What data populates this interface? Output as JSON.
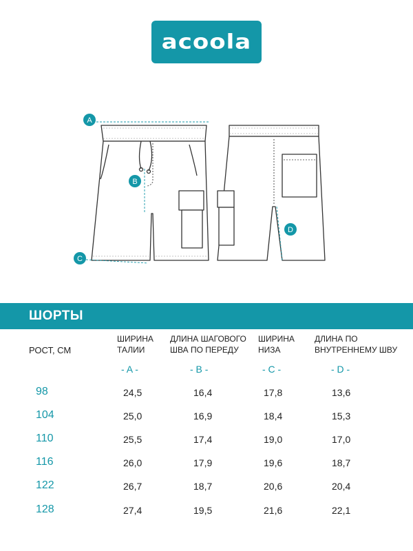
{
  "brand": {
    "logo_text": "acoola",
    "accent": "#1497a8"
  },
  "diagram": {
    "markers": [
      "A",
      "B",
      "C",
      "D"
    ]
  },
  "table": {
    "title": "ШОРТЫ",
    "row_header": "РОСТ, СМ",
    "columns": [
      {
        "name_line1": "ШИРИНА",
        "name_line2": "ТАЛИИ",
        "code": "- A -"
      },
      {
        "name_line1": "ДЛИНА ШАГОВОГО",
        "name_line2": "ШВА ПО ПЕРЕДУ",
        "code": "- B -"
      },
      {
        "name_line1": "ШИРИНА",
        "name_line2": "НИЗА",
        "code": "- C -"
      },
      {
        "name_line1": "ДЛИНА ПО",
        "name_line2": "ВНУТРЕННЕМУ ШВУ",
        "code": "- D -"
      }
    ],
    "rows": [
      {
        "size": "98",
        "values": [
          "24,5",
          "16,4",
          "17,8",
          "13,6"
        ]
      },
      {
        "size": "104",
        "values": [
          "25,0",
          "16,9",
          "18,4",
          "15,3"
        ]
      },
      {
        "size": "110",
        "values": [
          "25,5",
          "17,4",
          "19,0",
          "17,0"
        ]
      },
      {
        "size": "116",
        "values": [
          "26,0",
          "17,9",
          "19,6",
          "18,7"
        ]
      },
      {
        "size": "122",
        "values": [
          "26,7",
          "18,7",
          "20,6",
          "20,4"
        ]
      },
      {
        "size": "128",
        "values": [
          "27,4",
          "19,5",
          "21,6",
          "22,1"
        ]
      }
    ]
  }
}
